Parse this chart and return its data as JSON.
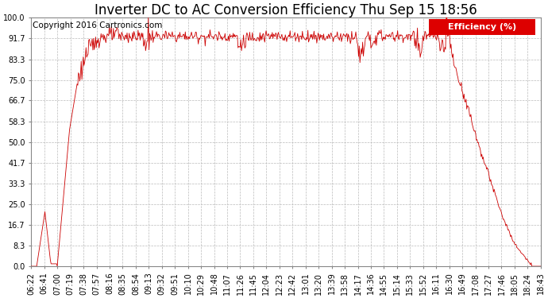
{
  "title": "Inverter DC to AC Conversion Efficiency Thu Sep 15 18:56",
  "copyright": "Copyright 2016 Cartronics.com",
  "legend_label": "Efficiency (%)",
  "legend_bg": "#dd0000",
  "legend_text_color": "#ffffff",
  "line_color": "#cc0000",
  "background_color": "#ffffff",
  "grid_color": "#bbbbbb",
  "yticks": [
    0.0,
    8.3,
    16.7,
    25.0,
    33.3,
    41.7,
    50.0,
    58.3,
    66.7,
    75.0,
    83.3,
    91.7,
    100.0
  ],
  "xtick_labels": [
    "06:22",
    "06:41",
    "07:00",
    "07:19",
    "07:38",
    "07:57",
    "08:16",
    "08:35",
    "08:54",
    "09:13",
    "09:32",
    "09:51",
    "10:10",
    "10:29",
    "10:48",
    "11:07",
    "11:26",
    "11:45",
    "12:04",
    "12:23",
    "12:42",
    "13:01",
    "13:20",
    "13:39",
    "13:58",
    "14:17",
    "14:36",
    "14:55",
    "15:14",
    "15:33",
    "15:52",
    "16:11",
    "16:30",
    "16:49",
    "17:08",
    "17:27",
    "17:46",
    "18:05",
    "18:24",
    "18:43"
  ],
  "ylim": [
    0.0,
    100.0
  ],
  "title_fontsize": 12,
  "copyright_fontsize": 7.5,
  "tick_fontsize": 7
}
